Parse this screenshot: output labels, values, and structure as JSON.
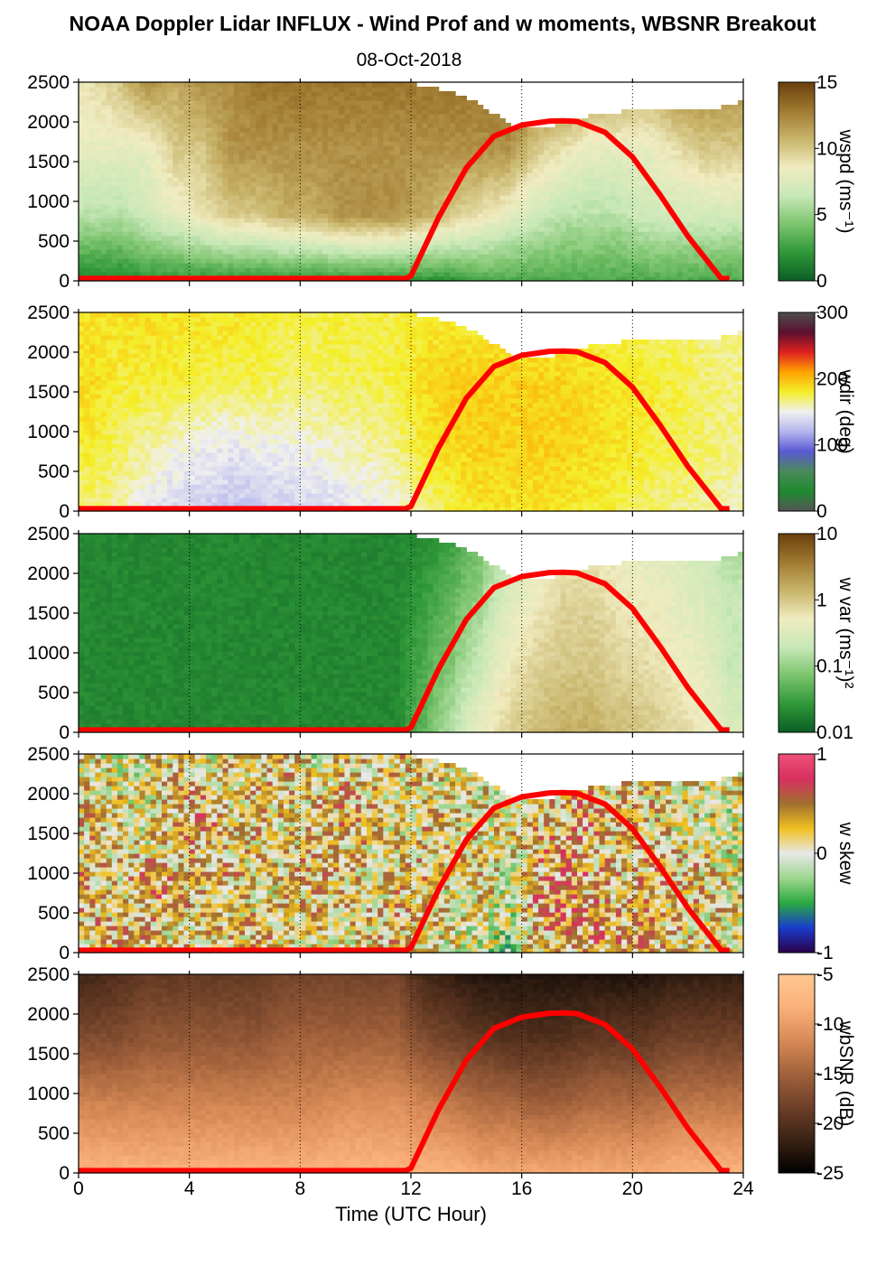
{
  "chart_data": {
    "type": "heatmap",
    "title": "NOAA Doppler Lidar INFLUX - Wind Prof and w moments, WBSNR Breakout",
    "subtitle": "08-Oct-2018",
    "xlabel": "Time (UTC Hour)",
    "xlim": [
      0,
      24
    ],
    "xticks": [
      "0",
      "4",
      "8",
      "12",
      "16",
      "20",
      "24"
    ],
    "gridlines_x": [
      4,
      8,
      12,
      16,
      20
    ],
    "overlay_line": {
      "color": "#ff0000",
      "x": [
        0,
        11.8,
        12,
        13,
        14,
        15,
        16,
        17,
        17.5,
        18,
        19,
        20,
        21,
        22,
        23.2,
        23.5
      ],
      "y": [
        30,
        30,
        60,
        800,
        1420,
        1820,
        1960,
        2010,
        2015,
        2005,
        1870,
        1560,
        1080,
        560,
        30,
        30
      ]
    },
    "panels": [
      {
        "name": "wspd",
        "ylim": [
          0,
          2500
        ],
        "yticks": [
          "0",
          "500",
          "1000",
          "1500",
          "2000",
          "2500"
        ],
        "colorbar": {
          "label": "wspd (ms⁻¹)",
          "ticks": [
            "0",
            "5",
            "10",
            "15"
          ],
          "range": [
            0,
            15
          ],
          "colors": [
            "#0b5e24",
            "#2f9838",
            "#7cc46e",
            "#c8e8b8",
            "#f0ecc0",
            "#c8b46a",
            "#a07a30",
            "#6a3e0c"
          ]
        },
        "top_profile": [
          2500,
          2500,
          2500,
          2500,
          2500,
          2500,
          2500,
          2500,
          2500,
          2500,
          2500,
          2500,
          2480,
          2420,
          2320,
          2100,
          1900,
          1950,
          2050,
          2110,
          2150,
          2180,
          2160,
          2170,
          2260
        ],
        "field": [
          [
            1.5,
            6,
            8,
            9
          ],
          [
            1.5,
            6,
            8,
            10
          ],
          [
            2,
            7,
            8,
            12
          ],
          [
            2,
            8,
            10,
            11
          ],
          [
            2,
            9,
            10,
            12
          ],
          [
            2,
            10,
            12,
            12
          ],
          [
            2,
            10,
            12,
            13
          ],
          [
            2,
            11,
            12,
            13
          ],
          [
            2,
            11,
            12,
            13
          ],
          [
            2,
            12,
            12,
            13
          ],
          [
            2,
            12,
            12,
            13
          ],
          [
            2,
            12,
            12,
            13
          ],
          [
            2,
            11,
            12,
            13
          ],
          [
            2,
            10,
            12,
            13
          ],
          [
            3,
            9,
            12,
            13
          ],
          [
            3,
            8,
            12,
            14
          ],
          [
            3,
            7,
            10,
            13
          ],
          [
            3,
            6,
            9,
            13
          ],
          [
            3,
            6,
            8,
            12
          ],
          [
            3,
            6,
            8,
            12
          ],
          [
            3,
            7,
            8,
            11
          ],
          [
            3,
            7,
            9,
            12
          ],
          [
            3,
            7,
            10,
            12
          ],
          [
            3,
            7,
            10,
            12
          ]
        ]
      },
      {
        "name": "wdir",
        "ylim": [
          0,
          2500
        ],
        "yticks": [
          "0",
          "500",
          "1000",
          "1500",
          "2000",
          "2500"
        ],
        "colorbar": {
          "label": "wdir (deg)",
          "ticks": [
            "0",
            "100",
            "200",
            "300"
          ],
          "range": [
            0,
            360
          ],
          "colors": [
            "#555555",
            "#1e8a30",
            "#4a8a5a",
            "#5a5ad2",
            "#b4b4ee",
            "#f0f0f0",
            "#f4ef28",
            "#ffa200",
            "#e02020",
            "#5a1030",
            "#505050"
          ]
        },
        "top_profile": [
          2500,
          2500,
          2500,
          2500,
          2500,
          2500,
          2500,
          2500,
          2500,
          2500,
          2500,
          2500,
          2480,
          2420,
          2320,
          2100,
          1900,
          1950,
          2050,
          2110,
          2150,
          2180,
          2160,
          2170,
          2260
        ],
        "field": [
          [
            200,
            215,
            225,
            220
          ],
          [
            195,
            205,
            215,
            220
          ],
          [
            175,
            195,
            215,
            225
          ],
          [
            165,
            185,
            215,
            220
          ],
          [
            160,
            180,
            212,
            220
          ],
          [
            155,
            175,
            210,
            218
          ],
          [
            155,
            180,
            210,
            215
          ],
          [
            160,
            180,
            205,
            210
          ],
          [
            165,
            185,
            205,
            210
          ],
          [
            170,
            190,
            208,
            212
          ],
          [
            175,
            195,
            210,
            212
          ],
          [
            180,
            200,
            212,
            212
          ],
          [
            200,
            220,
            225,
            215
          ],
          [
            210,
            228,
            232,
            215
          ],
          [
            220,
            230,
            230,
            215
          ],
          [
            220,
            230,
            230,
            215
          ],
          [
            220,
            230,
            230,
            215
          ],
          [
            220,
            230,
            228,
            215
          ],
          [
            215,
            225,
            225,
            210
          ],
          [
            210,
            220,
            220,
            205
          ],
          [
            205,
            215,
            215,
            205
          ],
          [
            200,
            210,
            212,
            200
          ],
          [
            195,
            205,
            205,
            198
          ],
          [
            190,
            200,
            200,
            195
          ]
        ]
      },
      {
        "name": "w var",
        "ylim": [
          0,
          2500
        ],
        "yticks": [
          "0",
          "500",
          "1000",
          "1500",
          "2000",
          "2500"
        ],
        "colorbar": {
          "label": "w var (ms⁻¹)²",
          "ticks": [
            "0.01",
            "0.1",
            "1",
            "10"
          ],
          "range": [
            0.01,
            10
          ],
          "log": true,
          "colors": [
            "#0b5e24",
            "#2f9838",
            "#7cc46e",
            "#c8e8b8",
            "#f0ecc0",
            "#c8b46a",
            "#a07a30",
            "#6a3e0c"
          ]
        },
        "top_profile": [
          2500,
          2500,
          2500,
          2500,
          2500,
          2500,
          2500,
          2500,
          2500,
          2500,
          2500,
          2500,
          2480,
          2420,
          2320,
          2100,
          1900,
          1950,
          2050,
          2110,
          2150,
          2180,
          2160,
          2170,
          2260
        ],
        "field": [
          [
            0.02,
            0.02,
            0.02,
            0.02
          ],
          [
            0.02,
            0.02,
            0.02,
            0.02
          ],
          [
            0.02,
            0.02,
            0.02,
            0.02
          ],
          [
            0.02,
            0.02,
            0.02,
            0.02
          ],
          [
            0.02,
            0.02,
            0.02,
            0.02
          ],
          [
            0.02,
            0.02,
            0.02,
            0.02
          ],
          [
            0.02,
            0.02,
            0.02,
            0.02
          ],
          [
            0.02,
            0.02,
            0.02,
            0.02
          ],
          [
            0.02,
            0.02,
            0.02,
            0.02
          ],
          [
            0.02,
            0.02,
            0.02,
            0.02
          ],
          [
            0.02,
            0.02,
            0.02,
            0.02
          ],
          [
            0.02,
            0.02,
            0.02,
            0.02
          ],
          [
            0.05,
            0.04,
            0.03,
            0.02
          ],
          [
            0.15,
            0.08,
            0.05,
            0.03
          ],
          [
            0.4,
            0.2,
            0.1,
            0.05
          ],
          [
            0.8,
            0.5,
            0.3,
            0.1
          ],
          [
            1.2,
            0.8,
            0.5,
            0.3
          ],
          [
            1.5,
            1,
            0.8,
            0.5
          ],
          [
            1.5,
            1,
            0.8,
            0.5
          ],
          [
            1.2,
            0.8,
            0.6,
            0.4
          ],
          [
            1,
            0.7,
            0.5,
            0.3
          ],
          [
            0.8,
            0.5,
            0.4,
            0.3
          ],
          [
            0.5,
            0.4,
            0.3,
            0.2
          ],
          [
            0.3,
            0.2,
            0.2,
            0.1
          ]
        ]
      },
      {
        "name": "w skew",
        "ylim": [
          0,
          2500
        ],
        "yticks": [
          "0",
          "500",
          "1000",
          "1500",
          "2000",
          "2500"
        ],
        "colorbar": {
          "label": "w skew",
          "ticks": [
            "-1",
            "0",
            "1"
          ],
          "range": [
            -1,
            1
          ],
          "colors": [
            "#2a004a",
            "#1a3ccc",
            "#2aaa40",
            "#9ed68e",
            "#e8e8e8",
            "#f0c020",
            "#a07030",
            "#d83060",
            "#f0507a"
          ]
        },
        "top_profile": [
          2500,
          2500,
          2500,
          2500,
          2500,
          2500,
          2500,
          2500,
          2500,
          2500,
          2500,
          2500,
          2480,
          2420,
          2320,
          2100,
          1900,
          1950,
          2050,
          2110,
          2150,
          2180,
          2160,
          2170,
          2260
        ],
        "field": [
          [
            0.2,
            0.3,
            0.2,
            0.1
          ],
          [
            0.3,
            0.1,
            0.2,
            0
          ],
          [
            0.2,
            0.4,
            0,
            0.1
          ],
          [
            0,
            0.3,
            0.2,
            0.2
          ],
          [
            0.3,
            0.2,
            0.4,
            0
          ],
          [
            0.1,
            0.3,
            0.1,
            0.2
          ],
          [
            0.3,
            0,
            0.3,
            0.1
          ],
          [
            0.2,
            0.2,
            0.1,
            0.3
          ],
          [
            0.1,
            0.3,
            0.2,
            0
          ],
          [
            0,
            0.2,
            0.3,
            0.2
          ],
          [
            0.2,
            0.1,
            0.2,
            0.1
          ],
          [
            0.3,
            0.2,
            0.1,
            0.2
          ],
          [
            0.1,
            0.2,
            0.2,
            0.1
          ],
          [
            0,
            0.1,
            0.2,
            0
          ],
          [
            -0.1,
            0.2,
            0.1,
            0.1
          ],
          [
            -0.2,
            0,
            0.1,
            0
          ],
          [
            0.2,
            0.3,
            0.2,
            0.1
          ],
          [
            0.3,
            0.4,
            0.3,
            0.2
          ],
          [
            0.4,
            0.3,
            0.3,
            0.2
          ],
          [
            0.3,
            0.2,
            0.2,
            0.1
          ],
          [
            0.3,
            0.3,
            0.2,
            0.2
          ],
          [
            0.2,
            0.2,
            0.1,
            0.1
          ],
          [
            0.1,
            0.2,
            0.1,
            0
          ],
          [
            0.1,
            0.1,
            0,
            0.1
          ]
        ]
      },
      {
        "name": "wbSNR",
        "ylim": [
          0,
          2500
        ],
        "yticks": [
          "0",
          "500",
          "1000",
          "1500",
          "2000",
          "2500"
        ],
        "colorbar": {
          "label": "wbSNR (dB)",
          "ticks": [
            "-25",
            "-20",
            "-15",
            "-10",
            "-5"
          ],
          "range": [
            -25,
            -5
          ],
          "colors": [
            "#000000",
            "#3a2214",
            "#6e4028",
            "#a2623c",
            "#d88a56",
            "#fbb07a",
            "#ffc891"
          ]
        },
        "top_profile": [
          2500,
          2500,
          2500,
          2500,
          2500,
          2500,
          2500,
          2500,
          2500,
          2500,
          2500,
          2500,
          2500,
          2500,
          2500,
          2500,
          2500,
          2500,
          2500,
          2500,
          2500,
          2500,
          2500,
          2500,
          2500
        ],
        "field": [
          [
            -8,
            -12,
            -17,
            -21
          ],
          [
            -8,
            -12,
            -17,
            -20
          ],
          [
            -8,
            -12,
            -16,
            -19
          ],
          [
            -8,
            -12,
            -16,
            -19
          ],
          [
            -8,
            -12,
            -16,
            -19
          ],
          [
            -8,
            -12,
            -16,
            -19
          ],
          [
            -8,
            -12,
            -16,
            -19
          ],
          [
            -8,
            -12,
            -15,
            -18
          ],
          [
            -8,
            -12,
            -15,
            -18
          ],
          [
            -8,
            -11,
            -15,
            -18
          ],
          [
            -8,
            -11,
            -15,
            -18
          ],
          [
            -8,
            -11,
            -15,
            -18
          ],
          [
            -8,
            -12,
            -17,
            -21
          ],
          [
            -8,
            -13,
            -18,
            -22
          ],
          [
            -9,
            -14,
            -19,
            -23
          ],
          [
            -9,
            -14,
            -20,
            -23
          ],
          [
            -9,
            -15,
            -20,
            -23
          ],
          [
            -9,
            -15,
            -20,
            -23
          ],
          [
            -9,
            -14,
            -19,
            -23
          ],
          [
            -9,
            -14,
            -19,
            -23
          ],
          [
            -9,
            -14,
            -19,
            -23
          ],
          [
            -8,
            -13,
            -18,
            -22
          ],
          [
            -8,
            -13,
            -18,
            -22
          ],
          [
            -8,
            -13,
            -18,
            -22
          ]
        ]
      }
    ]
  }
}
